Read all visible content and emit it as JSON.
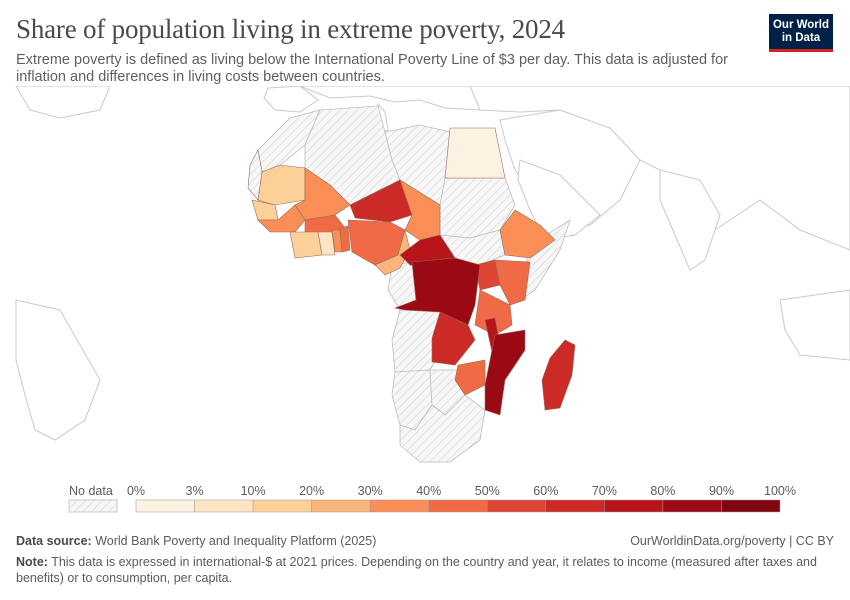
{
  "title": "Share of population living in extreme poverty, 2024",
  "subtitle": "Extreme poverty is defined as living below the International Poverty Line of $3 per day. This data is adjusted for inflation and differences in living costs between countries.",
  "logo": {
    "line1": "Our World",
    "line2": "in Data"
  },
  "legend": {
    "no_data_label": "No data",
    "tick_labels": [
      "0%",
      "3%",
      "10%",
      "20%",
      "30%",
      "40%",
      "50%",
      "60%",
      "70%",
      "80%",
      "90%",
      "100%"
    ],
    "colors": [
      "#fdf2e2",
      "#fde4c2",
      "#fcd099",
      "#fbb57b",
      "#f98f57",
      "#ef6a45",
      "#dd4535",
      "#cc2a26",
      "#b8141c",
      "#9b0a14",
      "#7f0610"
    ]
  },
  "footer": {
    "source_label": "Data source:",
    "source_text": "World Bank Poverty and Inequality Platform (2025)",
    "link_text": "OurWorldinData.org/poverty | CC BY",
    "note_label": "Note:",
    "note_text": "This data is expressed in international-$ at 2021 prices. Depending on the country and year, it relates to income (measured after taxes and benefits) or to consumption, per capita."
  },
  "map_data": {
    "bins": [
      "0-3%",
      "3-10%",
      "10-20%",
      "20-30%",
      "30-40%",
      "40-50%",
      "50-60%",
      "60-70%",
      "70-80%",
      "80-90%",
      "90-100%"
    ],
    "countries": [
      {
        "name": "Mauritania",
        "bin": "10-20%"
      },
      {
        "name": "Mali",
        "bin": "30-40%"
      },
      {
        "name": "Niger",
        "bin": "60-70%"
      },
      {
        "name": "Chad",
        "bin": "30-40%"
      },
      {
        "name": "Egypt",
        "bin": "0-3%"
      },
      {
        "name": "Senegal",
        "bin": "10-20%"
      },
      {
        "name": "Guinea",
        "bin": "30-40%"
      },
      {
        "name": "Burkina Faso",
        "bin": "40-50%"
      },
      {
        "name": "Nigeria",
        "bin": "40-50%"
      },
      {
        "name": "Cote d'Ivoire",
        "bin": "10-20%"
      },
      {
        "name": "Ghana",
        "bin": "10-20%"
      },
      {
        "name": "Togo",
        "bin": "30-40%"
      },
      {
        "name": "Benin",
        "bin": "40-50%"
      },
      {
        "name": "Cameroon",
        "bin": "20-30%"
      },
      {
        "name": "Central African Republic",
        "bin": "70-80%"
      },
      {
        "name": "Ethiopia",
        "bin": "30-40%"
      },
      {
        "name": "Kenya",
        "bin": "40-50%"
      },
      {
        "name": "Uganda",
        "bin": "50-60%"
      },
      {
        "name": "Democratic Republic of Congo",
        "bin": "70-80%"
      },
      {
        "name": "Tanzania",
        "bin": "40-50%"
      },
      {
        "name": "Zambia",
        "bin": "60-70%"
      },
      {
        "name": "Malawi",
        "bin": "70-80%"
      },
      {
        "name": "Mozambique",
        "bin": "70-80%"
      },
      {
        "name": "Zimbabwe",
        "bin": "40-50%"
      },
      {
        "name": "Madagascar",
        "bin": "60-70%"
      },
      {
        "name": "Angola",
        "bin": "No data"
      },
      {
        "name": "South Africa",
        "bin": "No data"
      },
      {
        "name": "Namibia",
        "bin": "No data"
      },
      {
        "name": "Libya",
        "bin": "No data"
      },
      {
        "name": "Algeria",
        "bin": "No data"
      },
      {
        "name": "Sudan",
        "bin": "No data"
      },
      {
        "name": "Somalia",
        "bin": "No data"
      }
    ]
  }
}
